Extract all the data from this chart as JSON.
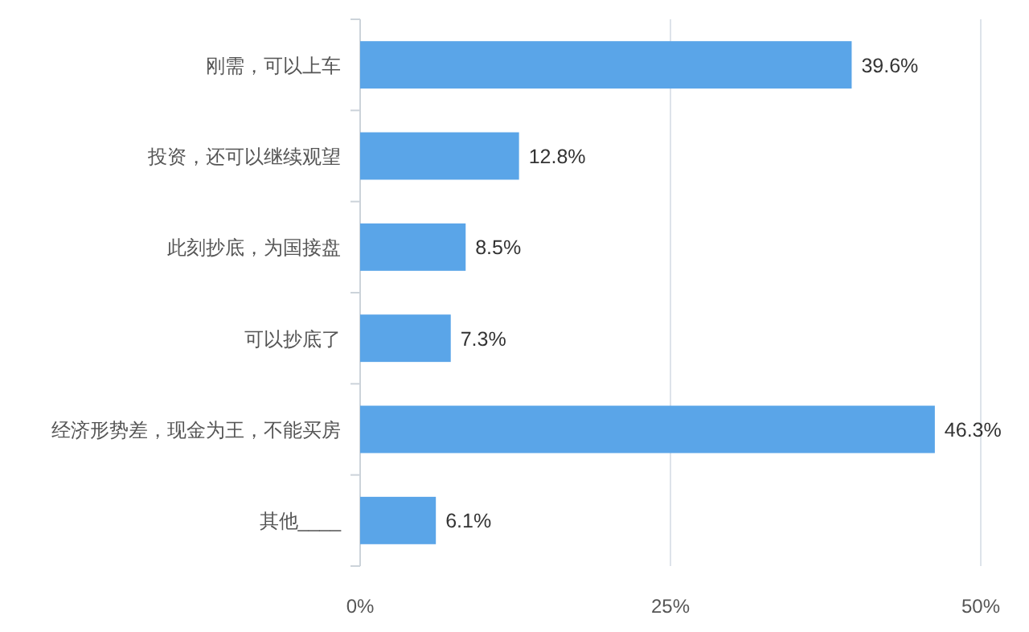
{
  "chart_data": {
    "type": "bar",
    "orientation": "horizontal",
    "categories": [
      "刚需，可以上车",
      "投资，还可以继续观望",
      "此刻抄底，为国接盘",
      "可以抄底了",
      "经济形势差，现金为王，不能买房",
      "其他____"
    ],
    "values": [
      39.6,
      12.8,
      8.5,
      7.3,
      46.3,
      6.1
    ],
    "value_labels": [
      "39.6%",
      "12.8%",
      "8.5%",
      "7.3%",
      "46.3%",
      "6.1%"
    ],
    "color": "#5aa5e8",
    "xlim": [
      0,
      50
    ],
    "xticks": [
      {
        "value": 0,
        "label": "0%"
      },
      {
        "value": 25,
        "label": "25%"
      },
      {
        "value": 50,
        "label": "50%"
      }
    ],
    "grid": "x"
  }
}
